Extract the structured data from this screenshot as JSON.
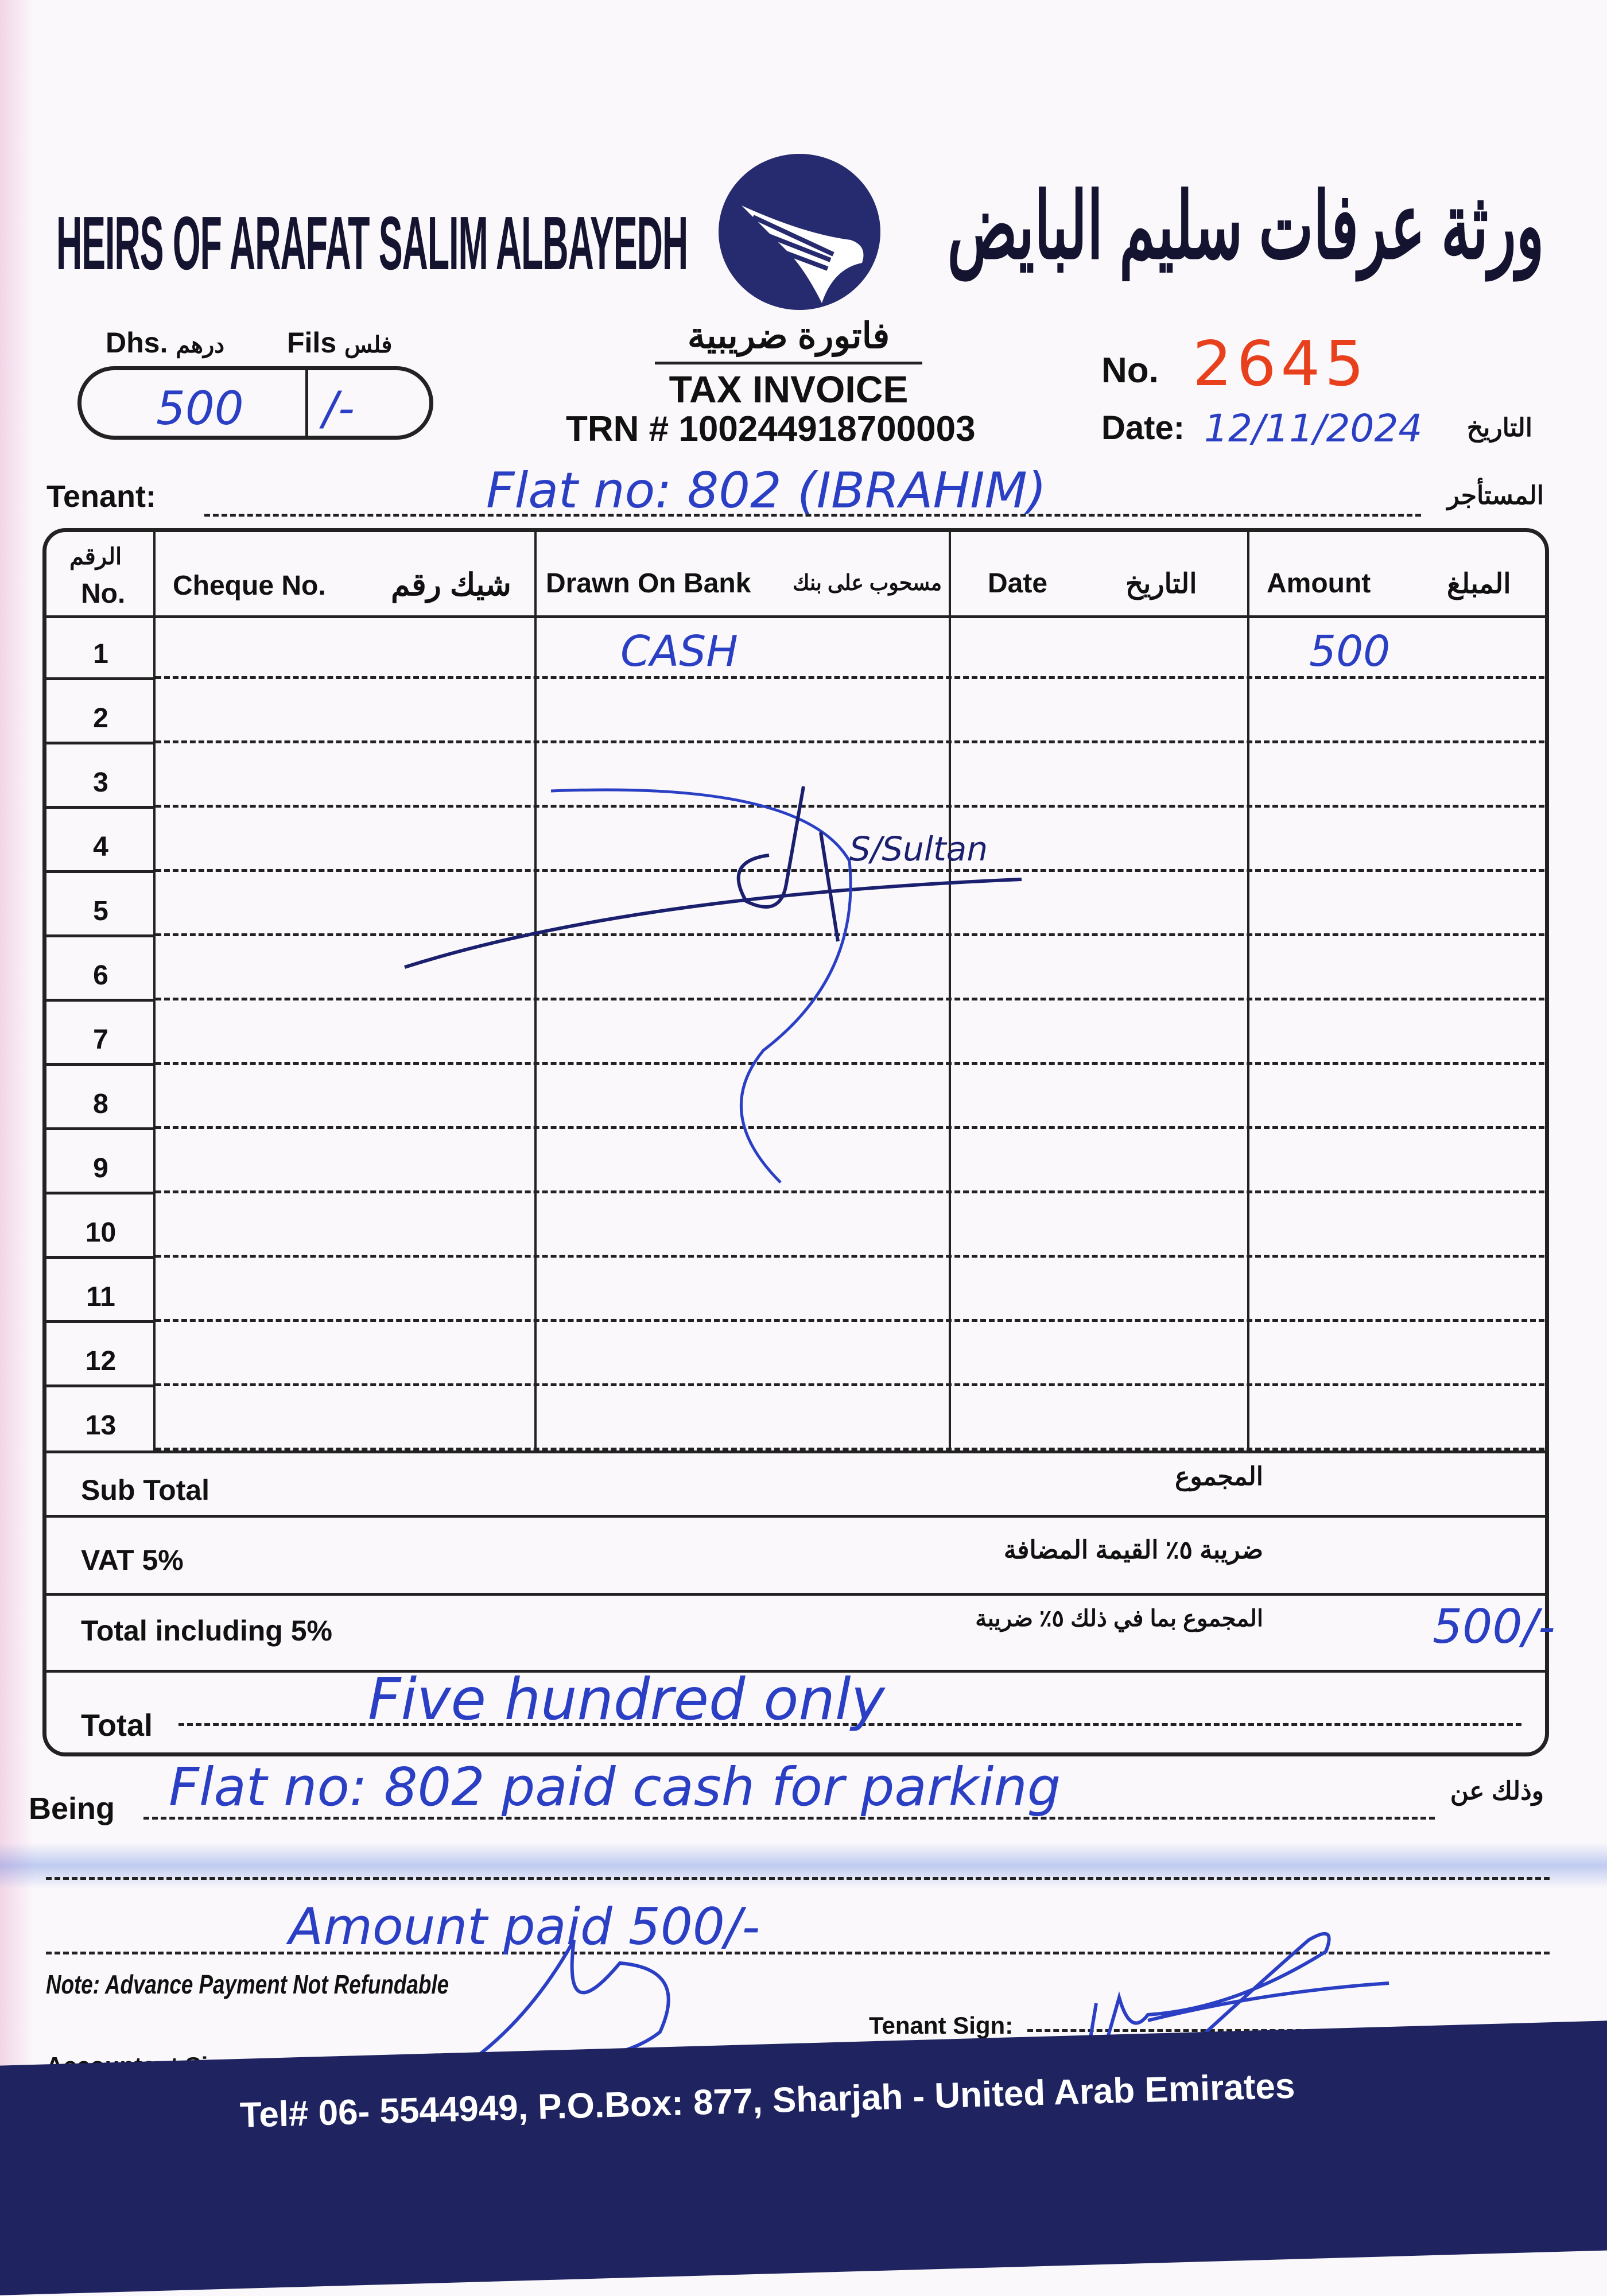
{
  "colors": {
    "ink": "#222222",
    "navy": "#1f2360",
    "invoice_number_red": "#e8401c",
    "handwriting_blue": "#2a3fc4",
    "footer_pink": "#e88fb4"
  },
  "header": {
    "company_en": "HEIRS OF ARAFAT SALIM ALBAYEDH",
    "company_ar": "ورثة عرفات سليم البايض",
    "logo_icon": "falcon-logo-icon",
    "doc_title_ar": "فاتورة ضريبية",
    "doc_title_en": "TAX INVOICE",
    "trn": "TRN # 100244918700003"
  },
  "amount_box": {
    "dhs_label": "Dhs.",
    "dhs_label_ar": "درهم",
    "fils_label": "Fils",
    "fils_label_ar": "فلس",
    "dhs_value": "500",
    "fils_value": "/-"
  },
  "invoice": {
    "no_label": "No.",
    "number": "2645",
    "date_label": "Date:",
    "date_value": "12/11/2024",
    "date_label_ar": "التاريخ"
  },
  "tenant": {
    "label": "Tenant:",
    "label_ar": "المستأجر",
    "value": "Flat no: 802 (IBRAHIM)"
  },
  "table": {
    "headers": {
      "no_ar": "الرقم",
      "no": "No.",
      "cheque": "Cheque No.",
      "cheque_ar": "شيك رقم",
      "bank": "Drawn On Bank",
      "bank_ar": "مسحوب على بنك",
      "date": "Date",
      "date_ar": "التاريخ",
      "amount": "Amount",
      "amount_ar": "المبلغ"
    },
    "rows": [
      {
        "no": "1",
        "cheque": "",
        "bank": "CASH",
        "date": "",
        "amount": "500"
      },
      {
        "no": "2",
        "cheque": "",
        "bank": "",
        "date": "",
        "amount": ""
      },
      {
        "no": "3",
        "cheque": "",
        "bank": "",
        "date": "",
        "amount": ""
      },
      {
        "no": "4",
        "cheque": "",
        "bank": "",
        "date": "",
        "amount": ""
      },
      {
        "no": "5",
        "cheque": "",
        "bank": "",
        "date": "",
        "amount": ""
      },
      {
        "no": "6",
        "cheque": "",
        "bank": "",
        "date": "",
        "amount": ""
      },
      {
        "no": "7",
        "cheque": "",
        "bank": "",
        "date": "",
        "amount": ""
      },
      {
        "no": "8",
        "cheque": "",
        "bank": "",
        "date": "",
        "amount": ""
      },
      {
        "no": "9",
        "cheque": "",
        "bank": "",
        "date": "",
        "amount": ""
      },
      {
        "no": "10",
        "cheque": "",
        "bank": "",
        "date": "",
        "amount": ""
      },
      {
        "no": "11",
        "cheque": "",
        "bank": "",
        "date": "",
        "amount": ""
      },
      {
        "no": "12",
        "cheque": "",
        "bank": "",
        "date": "",
        "amount": ""
      },
      {
        "no": "13",
        "cheque": "",
        "bank": "",
        "date": "",
        "amount": ""
      }
    ],
    "cancel_signature": "S/Sultan"
  },
  "totals": {
    "subtotal_label": "Sub Total",
    "subtotal_label_ar": "المجموع",
    "vat_label": "VAT 5%",
    "vat_label_ar": "ضريبة ٥٪ القيمة المضافة",
    "total_incl_label": "Total including 5%",
    "total_incl_label_ar": "المجموع بما في ذلك ٥٪ ضريبة",
    "total_incl_value": "500/-",
    "total_label": "Total",
    "total_words": "Five hundred only"
  },
  "being": {
    "label": "Being",
    "label_ar": "وذلك عن",
    "line1": "Flat no: 802 paid cash for parking",
    "line2": "",
    "line3": "Amount paid 500/-"
  },
  "note": "Note: Advance Payment Not Refundable",
  "signatures": {
    "accountant_label": "Accountant Sign:",
    "tenant_label": "Tenant Sign:"
  },
  "footer": {
    "contact": "Tel# 06- 5544949, P.O.Box: 877, Sharjah - United Arab Emirates"
  }
}
